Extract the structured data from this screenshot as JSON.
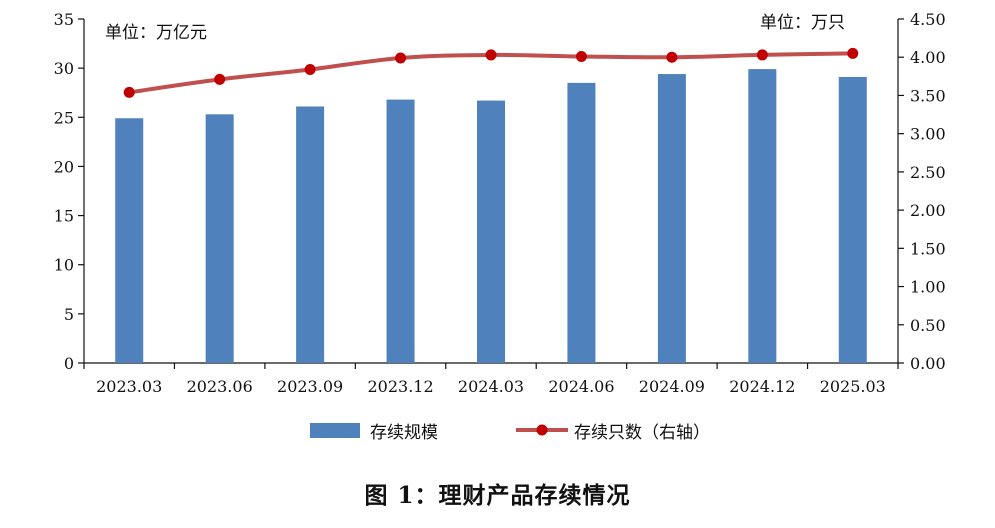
{
  "chart_data": {
    "type": "bar+line",
    "categories": [
      "2023.03",
      "2023.06",
      "2023.09",
      "2023.12",
      "2024.03",
      "2024.06",
      "2024.09",
      "2024.12",
      "2025.03"
    ],
    "series": [
      {
        "name": "存续规模",
        "type": "bar",
        "axis": "left",
        "color": "#4f81bd",
        "values": [
          24.9,
          25.3,
          26.1,
          26.8,
          26.7,
          28.5,
          29.4,
          29.9,
          29.1
        ]
      },
      {
        "name": "存续只数（右轴）",
        "type": "line",
        "axis": "right",
        "color": "#c0504d",
        "values": [
          3.54,
          3.71,
          3.84,
          3.99,
          4.03,
          4.01,
          4.0,
          4.03,
          4.05
        ]
      }
    ],
    "y_left": {
      "min": 0,
      "max": 35,
      "step": 5,
      "unit": "单位：万亿元",
      "ticks": [
        "0",
        "5",
        "10",
        "15",
        "20",
        "25",
        "30",
        "35"
      ]
    },
    "y_right": {
      "min": 0,
      "max": 4.5,
      "step": 0.5,
      "unit": "单位：万只",
      "ticks": [
        "0.00",
        "0.50",
        "1.00",
        "1.50",
        "2.00",
        "2.50",
        "3.00",
        "3.50",
        "4.00",
        "4.50"
      ]
    },
    "grid": false,
    "legend_position": "bottom"
  },
  "legend": {
    "bar_label": "存续规模",
    "line_label": "存续只数（右轴）"
  },
  "caption": "图 1：理财产品存续情况"
}
